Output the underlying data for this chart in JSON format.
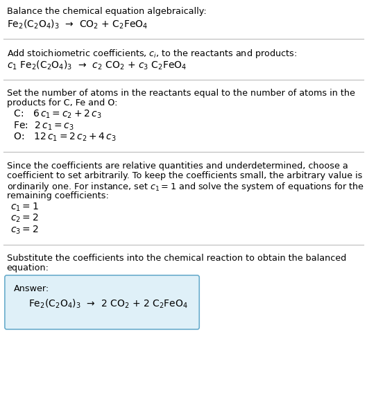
{
  "bg_color": "#ffffff",
  "text_color": "#000000",
  "separator_color": "#cccccc",
  "font_size_body": 9.2,
  "font_size_eq": 10.0,
  "sections": [
    {
      "type": "text_then_eq",
      "text": "Balance the chemical equation algebraically:",
      "eq": "Fe$_2$(C$_2$O$_4$)$_3$  →  CO$_2$ + C$_2$FeO$_4$",
      "sep_after": true
    },
    {
      "type": "text_then_eq",
      "text": "Add stoichiometric coefficients, $c_i$, to the reactants and products:",
      "eq": "$c_1$ Fe$_2$(C$_2$O$_4$)$_3$  →  $c_2$ CO$_2$ + $c_3$ C$_2$FeO$_4$",
      "sep_after": true
    },
    {
      "type": "text_then_eqlist",
      "text": "Set the number of atoms in the reactants equal to the number of atoms in the\nproducts for C, Fe and O:",
      "eqs": [
        " C:   $6\\,c_1 = c_2 + 2\\,c_3$",
        " Fe:  $2\\,c_1 = c_3$",
        " O:   $12\\,c_1 = 2\\,c_2 + 4\\,c_3$"
      ],
      "sep_after": true
    },
    {
      "type": "text_then_eqlist",
      "text": "Since the coefficients are relative quantities and underdetermined, choose a\ncoefficient to set arbitrarily. To keep the coefficients small, the arbitrary value is\nordinarily one. For instance, set $c_1 = 1$ and solve the system of equations for the\nremaining coefficients:",
      "eqs": [
        "$c_1 = 1$",
        "$c_2 = 2$",
        "$c_3 = 2$"
      ],
      "sep_after": true
    },
    {
      "type": "text_then_answer",
      "text": "Substitute the coefficients into the chemical reaction to obtain the balanced\nequation:",
      "answer_label": "Answer:",
      "answer_eq": "Fe$_2$(C$_2$O$_4$)$_3$  →  2 CO$_2$ + 2 C$_2$FeO$_4$",
      "box_color": "#dff0f8",
      "box_border": "#6aadcc",
      "sep_after": false
    }
  ]
}
